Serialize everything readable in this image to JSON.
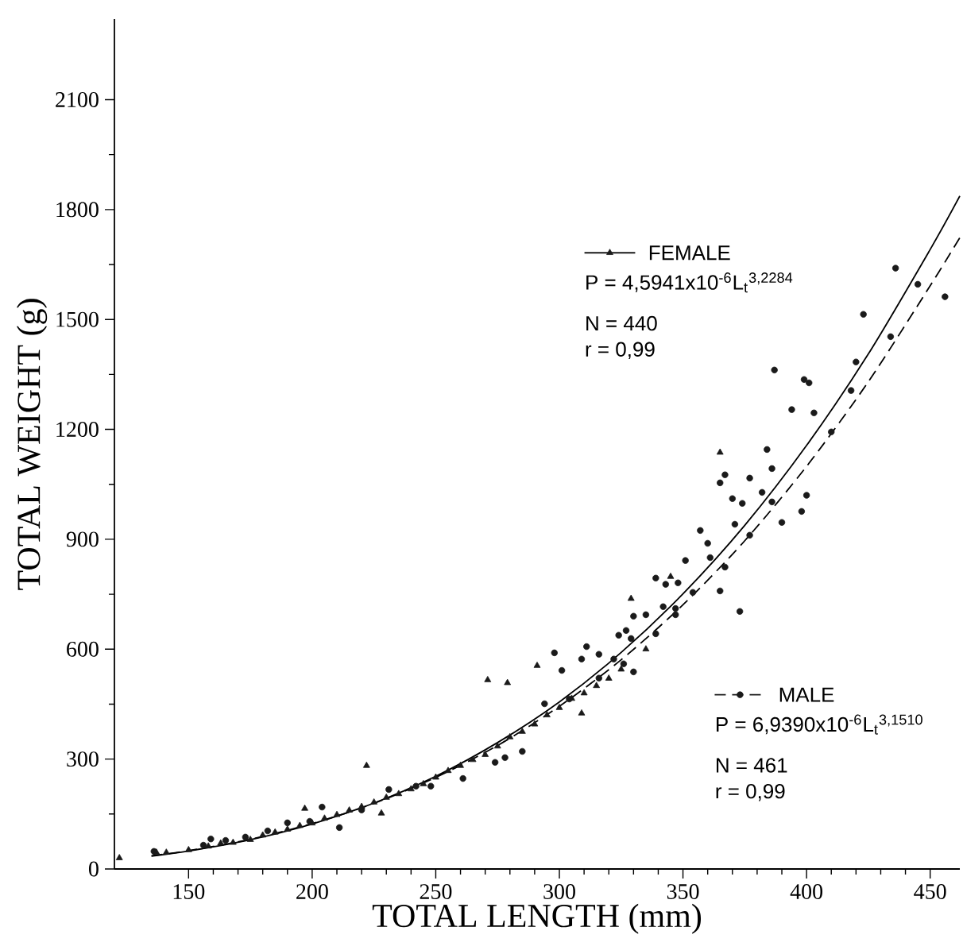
{
  "chart_data": {
    "type": "scatter",
    "xlabel": "TOTAL LENGTH (mm)",
    "ylabel": "TOTAL WEIGHT (g)",
    "xlim": [
      120,
      462
    ],
    "ylim": [
      0,
      2320
    ],
    "xticks": [
      150,
      200,
      250,
      300,
      350,
      400,
      450
    ],
    "yticks": [
      0,
      300,
      600,
      900,
      1200,
      1500,
      1800,
      2100
    ],
    "grid": false,
    "legend": "right",
    "annotations": [
      "P = 4,5941x10$^{-6}$L$_{t}$$^{3,2284}$",
      "N = 440",
      "r = 0,99",
      "P = 6,9390x10$^{-6}$L$_{t}$$^{3,1510}$",
      "N = 461",
      "r = 0,99"
    ],
    "series": [
      {
        "name": "FEMALE",
        "marker": "triangle",
        "color": "#1a1a1a",
        "x": [
          122,
          137,
          141,
          150,
          158,
          163,
          168,
          175,
          180,
          185,
          190,
          195,
          197,
          200,
          205,
          210,
          215,
          220,
          222,
          225,
          228,
          230,
          235,
          240,
          245,
          250,
          255,
          260,
          265,
          270,
          271,
          275,
          279,
          280,
          285,
          290,
          291,
          295,
          300,
          305,
          309,
          310,
          315,
          320,
          325,
          329,
          335,
          345,
          365
        ],
        "values": [
          30,
          45,
          45,
          52,
          62,
          70,
          72,
          80,
          92,
          100,
          108,
          118,
          165,
          125,
          138,
          148,
          160,
          170,
          282,
          182,
          152,
          195,
          205,
          218,
          232,
          250,
          268,
          282,
          298,
          312,
          516,
          335,
          508,
          360,
          375,
          395,
          555,
          420,
          440,
          465,
          425,
          480,
          500,
          520,
          545,
          738,
          600,
          798,
          1137
        ]
      },
      {
        "name": "MALE",
        "marker": "circle",
        "color": "#1a1a1a",
        "x": [
          136,
          156,
          159,
          165,
          173,
          182,
          190,
          199,
          204,
          211,
          220,
          231,
          242,
          248,
          261,
          274,
          278,
          285,
          294,
          298,
          301,
          304,
          309,
          311,
          316,
          316,
          322,
          324,
          326,
          327,
          329,
          330,
          330,
          335,
          339,
          339,
          342,
          343,
          347,
          347,
          348,
          351,
          354,
          357,
          360,
          361,
          365,
          365,
          367,
          367,
          370,
          371,
          373,
          374,
          377,
          377,
          382,
          384,
          386,
          386,
          387,
          390,
          394,
          398,
          399,
          400,
          401,
          403,
          410,
          418,
          420,
          423,
          434,
          436,
          445,
          456
        ],
        "values": [
          48,
          65,
          82,
          78,
          87,
          104,
          126,
          130,
          169,
          113,
          161,
          217,
          226,
          226,
          247,
          291,
          304,
          321,
          451,
          590,
          542,
          464,
          573,
          607,
          586,
          521,
          573,
          638,
          560,
          651,
          629,
          538,
          690,
          694,
          642,
          794,
          716,
          777,
          711,
          694,
          781,
          842,
          755,
          924,
          889,
          850,
          759,
          1054,
          1076,
          824,
          1011,
          941,
          703,
          998,
          911,
          1067,
          1028,
          1145,
          1093,
          1002,
          1362,
          946,
          1254,
          976,
          1336,
          1020,
          1327,
          1245,
          1193,
          1306,
          1384,
          1514,
          1453,
          1640,
          1596,
          1562
        ]
      },
      {
        "type": "line",
        "line_style": "solid",
        "color": "#000000",
        "x": [
          135,
          150,
          175,
          200,
          225,
          250,
          275,
          300,
          325,
          350,
          375,
          400,
          425,
          450,
          462
        ],
        "values": [
          35,
          49,
          80,
          123,
          180,
          253,
          345,
          456,
          591,
          751,
          938,
          1156,
          1406,
          1691,
          1837
        ]
      },
      {
        "type": "line",
        "line_style": "dashed",
        "color": "#000000",
        "x": [
          135,
          150,
          175,
          200,
          225,
          250,
          275,
          300,
          325,
          350,
          375,
          400,
          425,
          450,
          462
        ],
        "values": [
          36,
          50,
          81,
          124,
          179,
          250,
          337,
          444,
          571,
          721,
          896,
          1099,
          1330,
          1592,
          1723
        ]
      }
    ]
  }
}
